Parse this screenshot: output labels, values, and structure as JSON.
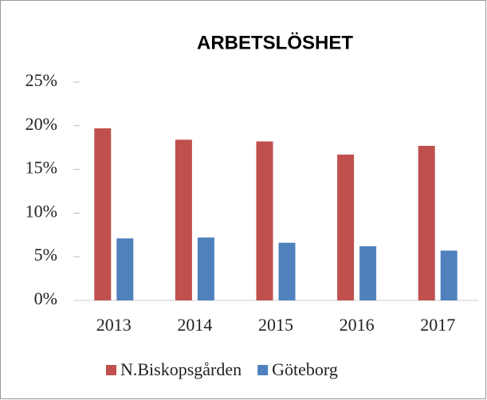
{
  "chart_data": {
    "type": "bar",
    "title": "ARBETSLÖSHET",
    "categories": [
      "2013",
      "2014",
      "2015",
      "2016",
      "2017"
    ],
    "series": [
      {
        "name": "N.Biskopsgården",
        "color": "#c0504d",
        "values": [
          19.7,
          18.4,
          18.2,
          16.7,
          17.7
        ]
      },
      {
        "name": "Göteborg",
        "color": "#4f81bd",
        "values": [
          7.1,
          7.2,
          6.6,
          6.2,
          5.7
        ]
      }
    ],
    "ylim": [
      0,
      25
    ],
    "yticks": [
      {
        "value": 0,
        "label": "0%"
      },
      {
        "value": 5,
        "label": "5%"
      },
      {
        "value": 10,
        "label": "10%"
      },
      {
        "value": 15,
        "label": "15%"
      },
      {
        "value": 20,
        "label": "20%"
      },
      {
        "value": 25,
        "label": "25%"
      }
    ],
    "grid": false,
    "legend": "bottom"
  }
}
